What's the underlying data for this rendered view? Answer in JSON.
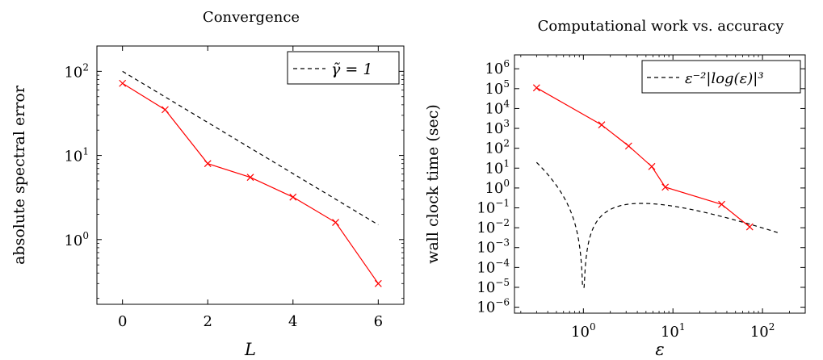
{
  "chart_data": [
    {
      "type": "line",
      "title": "Convergence",
      "xlabel": "L",
      "ylabel": "absolute spectral error",
      "y_scale": "log",
      "xlim": [
        -0.6,
        6.6
      ],
      "ylim": [
        0.17,
        200
      ],
      "x_ticks": [
        0,
        2,
        4,
        6
      ],
      "x_tick_labels": [
        "0",
        "2",
        "4",
        "6"
      ],
      "y_ticks": [
        1,
        10,
        100
      ],
      "y_tick_labels": [
        {
          "base": "10",
          "exp": "0"
        },
        {
          "base": "10",
          "exp": "1"
        },
        {
          "base": "10",
          "exp": "2"
        }
      ],
      "legend": {
        "placement": "top-right",
        "label": "γ̃ = 1"
      },
      "series": [
        {
          "style": "solid",
          "color": "#ff0000",
          "marker": "x",
          "x": [
            0,
            1,
            2,
            3,
            4,
            5,
            6
          ],
          "y": [
            72,
            35,
            8,
            5.5,
            3.2,
            1.6,
            0.3
          ]
        },
        {
          "name": "γ̃ = 1",
          "style": "dashed",
          "color": "#000000",
          "marker": "none",
          "x": [
            0,
            6
          ],
          "y": [
            100,
            1.5
          ]
        }
      ]
    },
    {
      "type": "line",
      "title": "Computational work vs. accuracy",
      "xlabel": "ε",
      "ylabel": "wall clock time (sec)",
      "x_scale": "log",
      "y_scale": "log",
      "xlim": [
        0.17,
        300
      ],
      "ylim": [
        5e-07,
        5000000.0
      ],
      "x_ticks": [
        1,
        10,
        100
      ],
      "x_tick_labels": [
        {
          "base": "10",
          "exp": "0"
        },
        {
          "base": "10",
          "exp": "1"
        },
        {
          "base": "10",
          "exp": "2"
        }
      ],
      "y_ticks": [
        1e-06,
        1e-05,
        0.0001,
        0.001,
        0.01,
        0.1,
        1,
        10,
        100,
        1000.0,
        10000.0,
        100000.0,
        1000000.0
      ],
      "y_tick_labels": [
        {
          "base": "10",
          "exp": "−6"
        },
        {
          "base": "10",
          "exp": "−5"
        },
        {
          "base": "10",
          "exp": "−4"
        },
        {
          "base": "10",
          "exp": "−3"
        },
        {
          "base": "10",
          "exp": "−2"
        },
        {
          "base": "10",
          "exp": "−1"
        },
        {
          "base": "10",
          "exp": "0"
        },
        {
          "base": "10",
          "exp": "1"
        },
        {
          "base": "10",
          "exp": "2"
        },
        {
          "base": "10",
          "exp": "3"
        },
        {
          "base": "10",
          "exp": "4"
        },
        {
          "base": "10",
          "exp": "5"
        },
        {
          "base": "10",
          "exp": "6"
        }
      ],
      "legend": {
        "placement": "top-right",
        "label": "ε⁻²|log(ε)|³"
      },
      "series": [
        {
          "style": "solid",
          "color": "#ff0000",
          "marker": "x",
          "x": [
            0.3,
            1.6,
            3.2,
            5.8,
            8.2,
            35,
            72
          ],
          "y": [
            110000,
            1500,
            130,
            12,
            1.1,
            0.15,
            0.011
          ]
        },
        {
          "name": "ε⁻²|log(ε)|³",
          "style": "dashed",
          "color": "#000000",
          "marker": "none",
          "function": "x^-2 * |ln(x)|^3",
          "x_range": [
            0.3,
            150
          ]
        }
      ]
    }
  ]
}
